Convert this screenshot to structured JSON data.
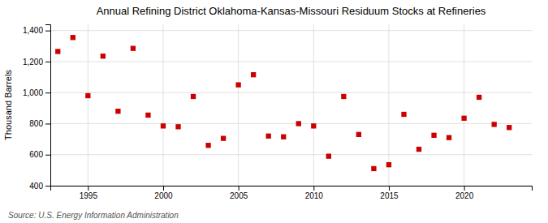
{
  "chart_data": {
    "type": "scatter",
    "title": "Annual Refining District Oklahoma-Kansas-Missouri Residuum Stocks at Refineries",
    "ylabel": "Thousand Barrels",
    "source": "Source: U.S. Energy Information Administration",
    "x": [
      1993,
      1994,
      1995,
      1996,
      1997,
      1998,
      1999,
      2000,
      2001,
      2002,
      2003,
      2004,
      2005,
      2006,
      2007,
      2008,
      2009,
      2010,
      2011,
      2012,
      2013,
      2014,
      2015,
      2016,
      2017,
      2018,
      2019,
      2020,
      2021,
      2022,
      2023
    ],
    "values": [
      1265,
      1355,
      980,
      1235,
      880,
      1285,
      855,
      785,
      780,
      975,
      660,
      705,
      1050,
      1115,
      720,
      715,
      800,
      785,
      590,
      975,
      730,
      510,
      535,
      860,
      635,
      725,
      710,
      835,
      970,
      795,
      775
    ],
    "color": "#cc0000",
    "marker": "square",
    "xlim": [
      1992.5,
      2024.5
    ],
    "ylim": [
      400,
      1440
    ],
    "xticks": [
      1995,
      2000,
      2005,
      2010,
      2015,
      2020
    ],
    "yticks": [
      400,
      600,
      800,
      {
        "value": 1000,
        "label": "1,000"
      },
      {
        "value": 1200,
        "label": "1,200"
      },
      {
        "value": 1400,
        "label": "1,400"
      }
    ],
    "grid": true
  }
}
